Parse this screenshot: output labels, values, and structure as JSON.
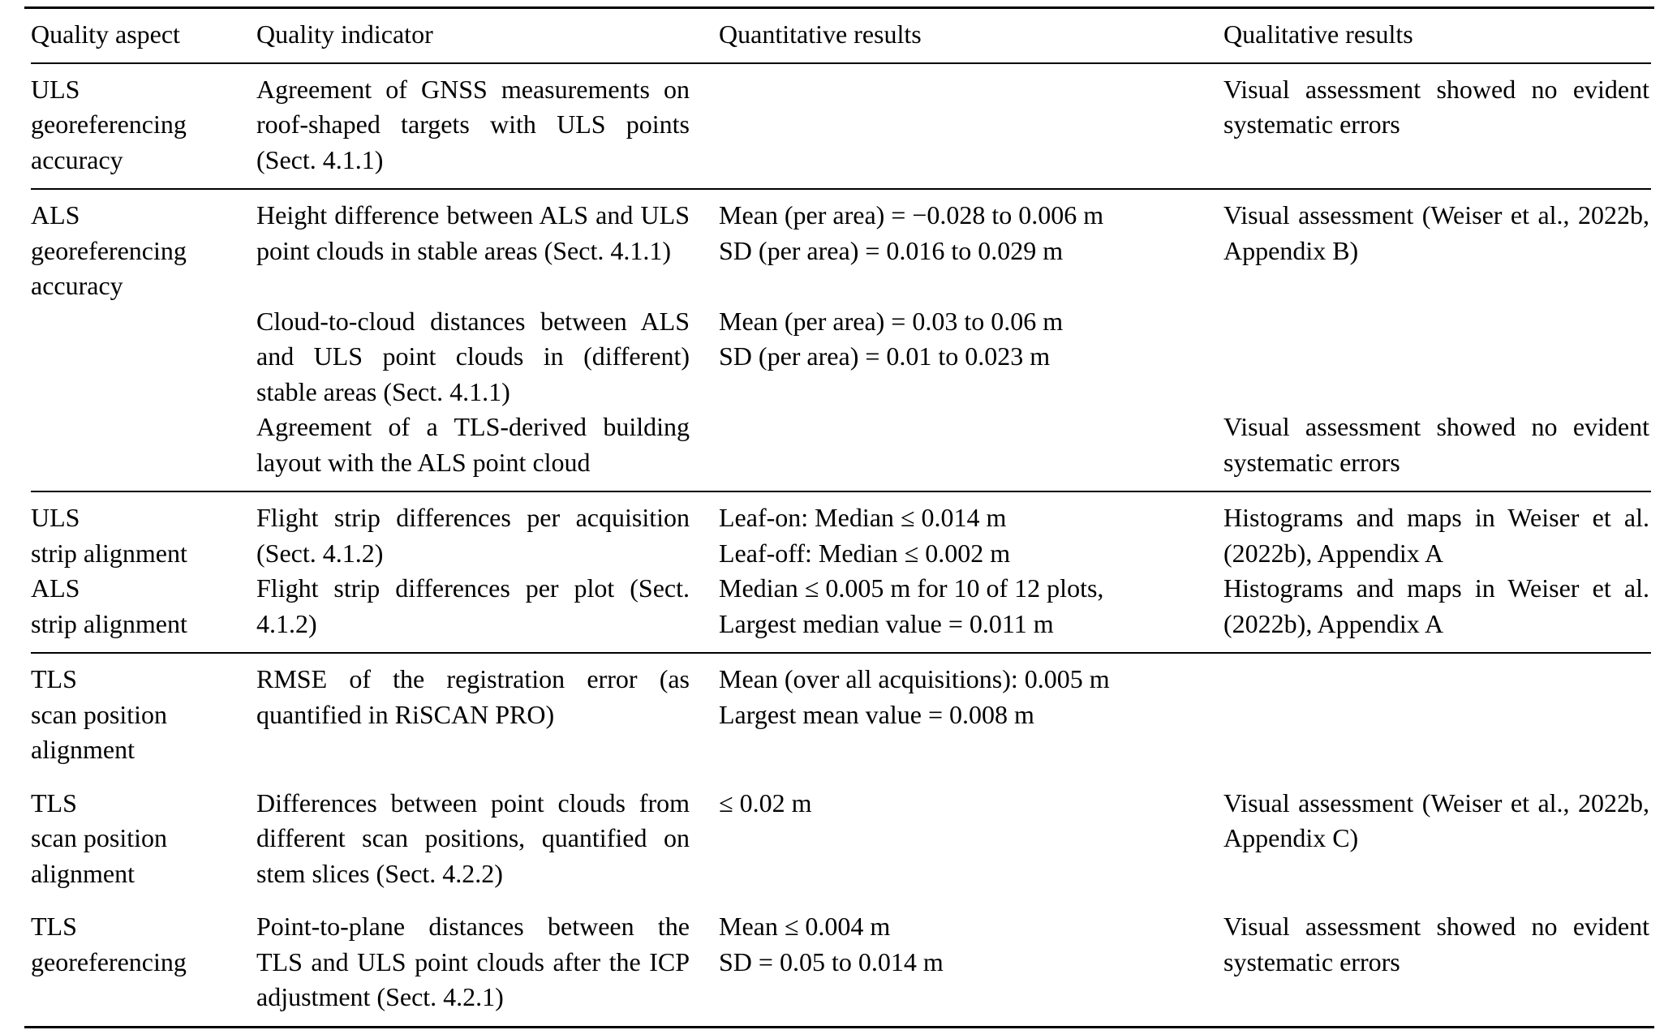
{
  "table": {
    "header": [
      "Quality aspect",
      "Quality indicator",
      "Quantitative results",
      "Qualitative results"
    ],
    "sections": [
      {
        "entries": [
          {
            "aspect": "ULS\ngeoreferencing\naccuracy",
            "indicator": "Agreement of GNSS measurements on roof-shaped targets with ULS points (Sect. 4.1.1)",
            "quant": "",
            "qual": "Visual assessment showed no evident systematic errors"
          }
        ]
      },
      {
        "entries": [
          {
            "aspect": "ALS\ngeoreferencing\naccuracy",
            "indicator": "Height difference between ALS and ULS point clouds in stable areas (Sect. 4.1.1)",
            "quant": "Mean (per area) = −0.028 to 0.006 m\nSD (per area) = 0.016 to 0.029 m",
            "qual": "Visual assessment (Weiser et al., 2022b, Appendix B)"
          },
          {
            "aspect": "",
            "indicator": "Cloud-to-cloud distances between ALS and ULS point clouds in (different) stable areas (Sect. 4.1.1)",
            "quant": "Mean (per area) = 0.03 to 0.06 m\nSD (per area) = 0.01 to 0.023 m",
            "qual": ""
          },
          {
            "aspect": "",
            "indicator": "Agreement of a TLS-derived building layout with the ALS point cloud",
            "quant": "",
            "qual": "Visual assessment showed no evident systematic errors"
          }
        ]
      },
      {
        "entries": [
          {
            "aspect": "ULS\nstrip alignment",
            "indicator": "Flight strip differences per acquisition (Sect. 4.1.2)",
            "quant": "Leaf-on: Median ≤ 0.014 m\nLeaf-off: Median ≤ 0.002 m",
            "qual": "Histograms and maps in Weiser et al. (2022b), Appendix A"
          },
          {
            "aspect": "ALS\nstrip alignment",
            "indicator": "Flight strip differences per plot (Sect. 4.1.2)",
            "quant": "Median ≤ 0.005 m for 10 of 12 plots,\nLargest median value = 0.011 m",
            "qual": "Histograms and maps in Weiser et al. (2022b), Appendix A"
          }
        ]
      },
      {
        "entries": [
          {
            "aspect": "TLS\nscan position\nalignment",
            "indicator": "RMSE of the registration error (as quantified in RiSCAN PRO)",
            "quant": "Mean (over all acquisitions): 0.005 m\nLargest mean value = 0.008 m",
            "qual": ""
          },
          {
            "aspect": "TLS\nscan position\nalignment",
            "indicator": "Differences between point clouds from different scan positions, quantified on stem slices (Sect. 4.2.2)",
            "quant": "≤ 0.02 m",
            "qual": "Visual assessment (Weiser et al., 2022b, Appendix C)"
          },
          {
            "aspect": "TLS\ngeoreferencing",
            "indicator": "Point-to-plane distances between the TLS and ULS point clouds after the ICP adjustment (Sect. 4.2.1)",
            "quant": "Mean ≤ 0.004 m\nSD = 0.05 to 0.014 m",
            "qual": "Visual assessment showed no evident systematic errors"
          }
        ]
      }
    ]
  }
}
